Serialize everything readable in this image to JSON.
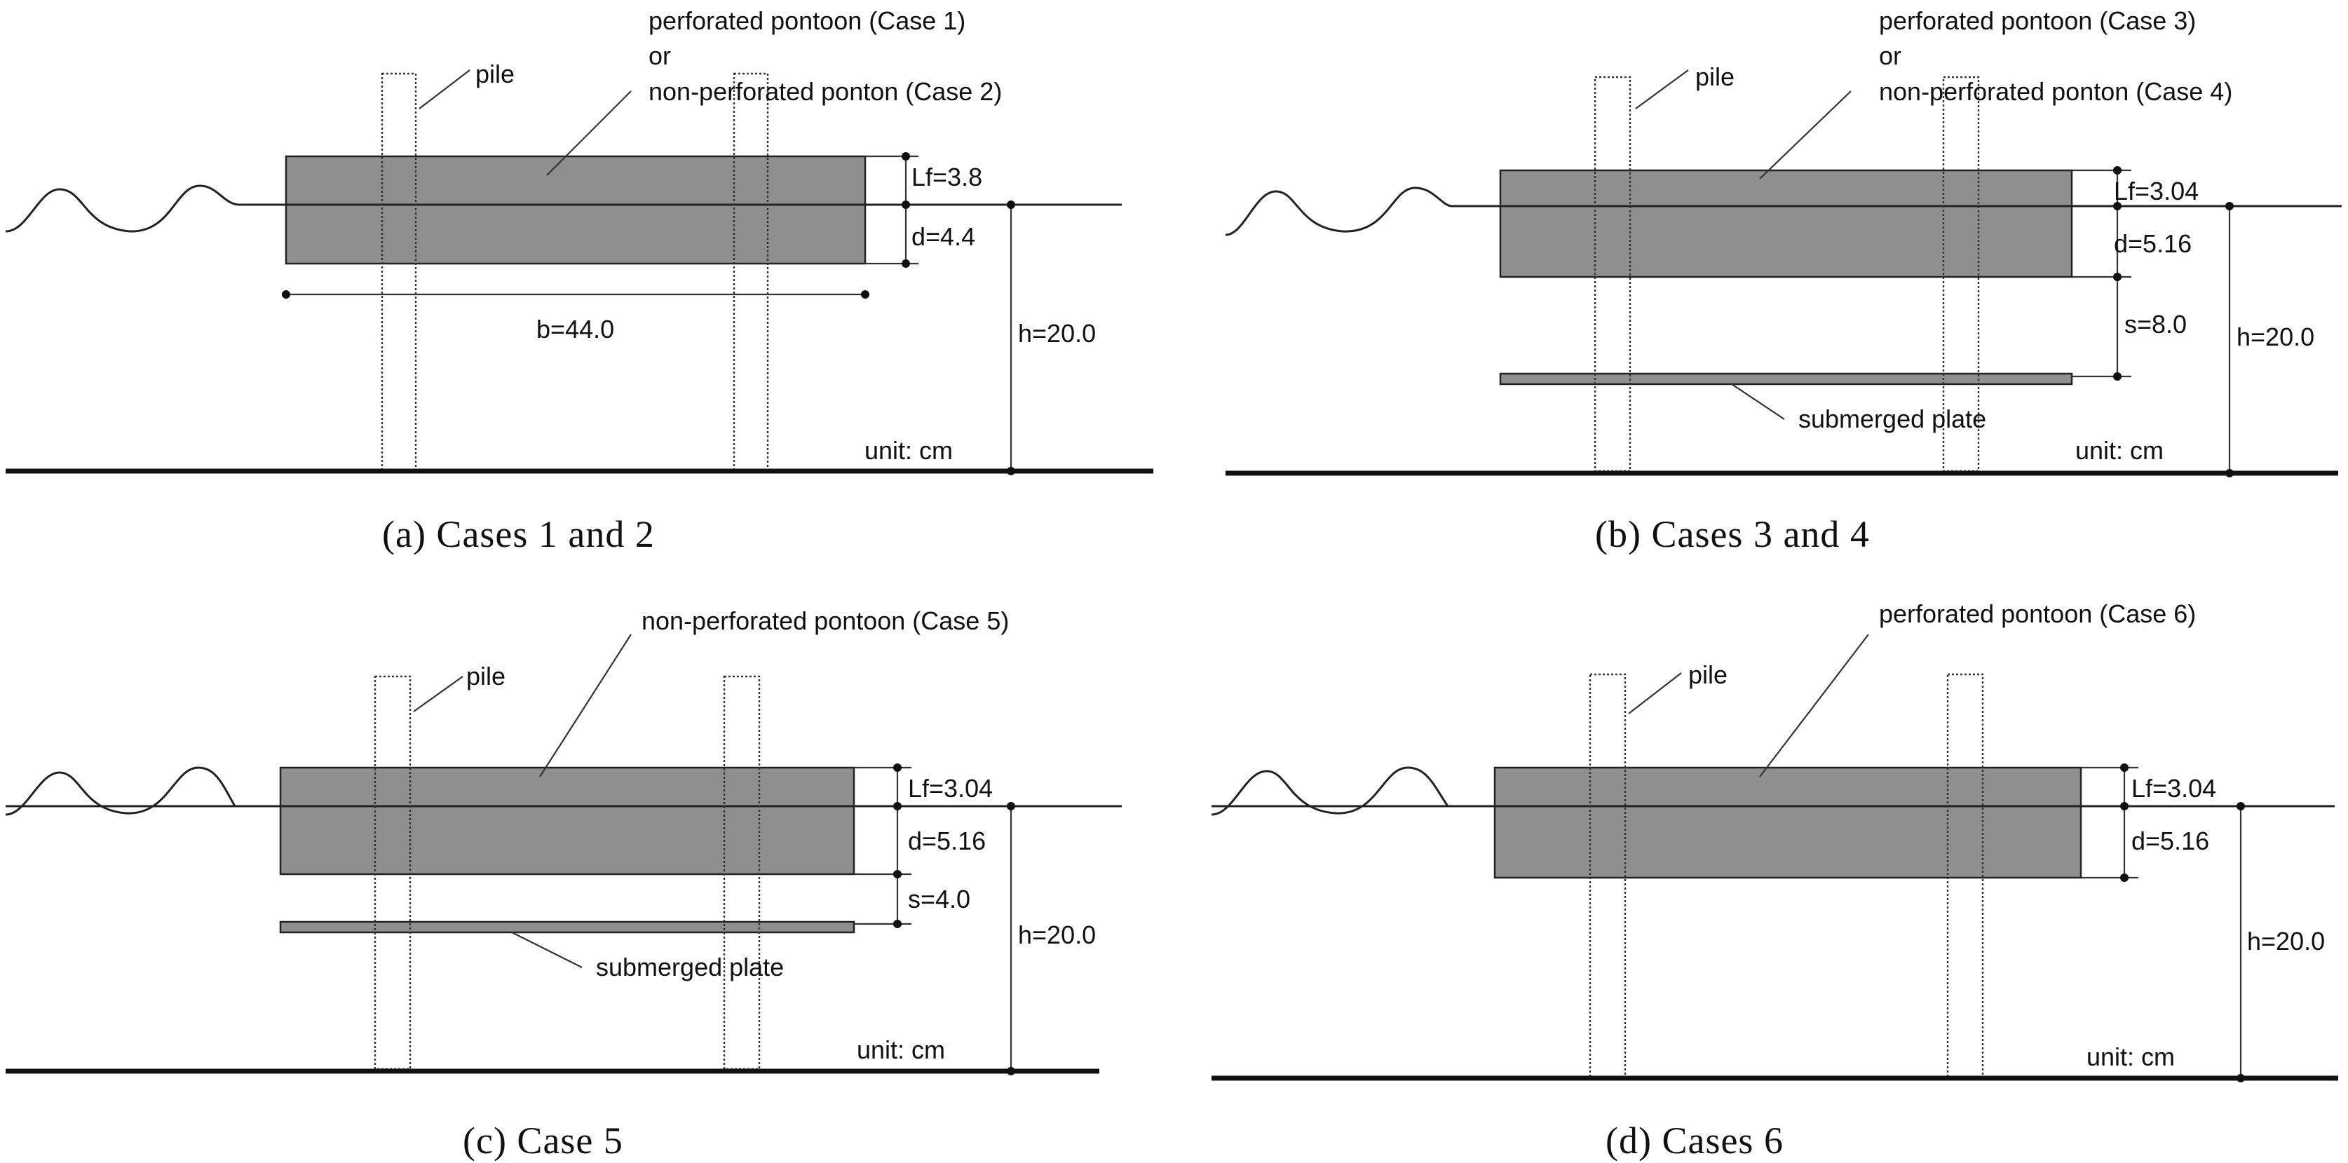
{
  "panels": [
    {
      "id": "a",
      "caption": "(a)  Cases  1  and  2",
      "pontoon_label_lines": [
        "perforated pontoon (Case 1)",
        "or",
        "non-perforated ponton (Case 2)"
      ],
      "pile_label": "pile",
      "freeboard": "Lf=3.8",
      "draft": "d=4.4",
      "breadth": "b=44.0",
      "depth": "h=20.0",
      "unit": "unit: cm"
    },
    {
      "id": "b",
      "caption": "(b)  Cases  3  and  4",
      "pontoon_label_lines": [
        "perforated pontoon (Case 3)",
        "or",
        "non-perforated ponton (Case 4)"
      ],
      "pile_label": "pile",
      "freeboard": "Lf=3.04",
      "draft": "d=5.16",
      "spacing": "s=8.0",
      "depth": "h=20.0",
      "plate_label": "submerged plate",
      "unit": "unit: cm"
    },
    {
      "id": "c",
      "caption": "(c)  Case  5",
      "pontoon_label_lines": [
        "non-perforated pontoon (Case 5)"
      ],
      "pile_label": "pile",
      "freeboard": "Lf=3.04",
      "draft": "d=5.16",
      "spacing": "s=4.0",
      "depth": "h=20.0",
      "plate_label": "submerged plate",
      "unit": "unit: cm"
    },
    {
      "id": "d",
      "caption": "(d)  Cases  6",
      "pontoon_label_lines": [
        "perforated pontoon (Case 6)"
      ],
      "pile_label": "pile",
      "freeboard": "Lf=3.04",
      "draft": "d=5.16",
      "depth": "h=20.0",
      "unit": "unit: cm"
    }
  ]
}
